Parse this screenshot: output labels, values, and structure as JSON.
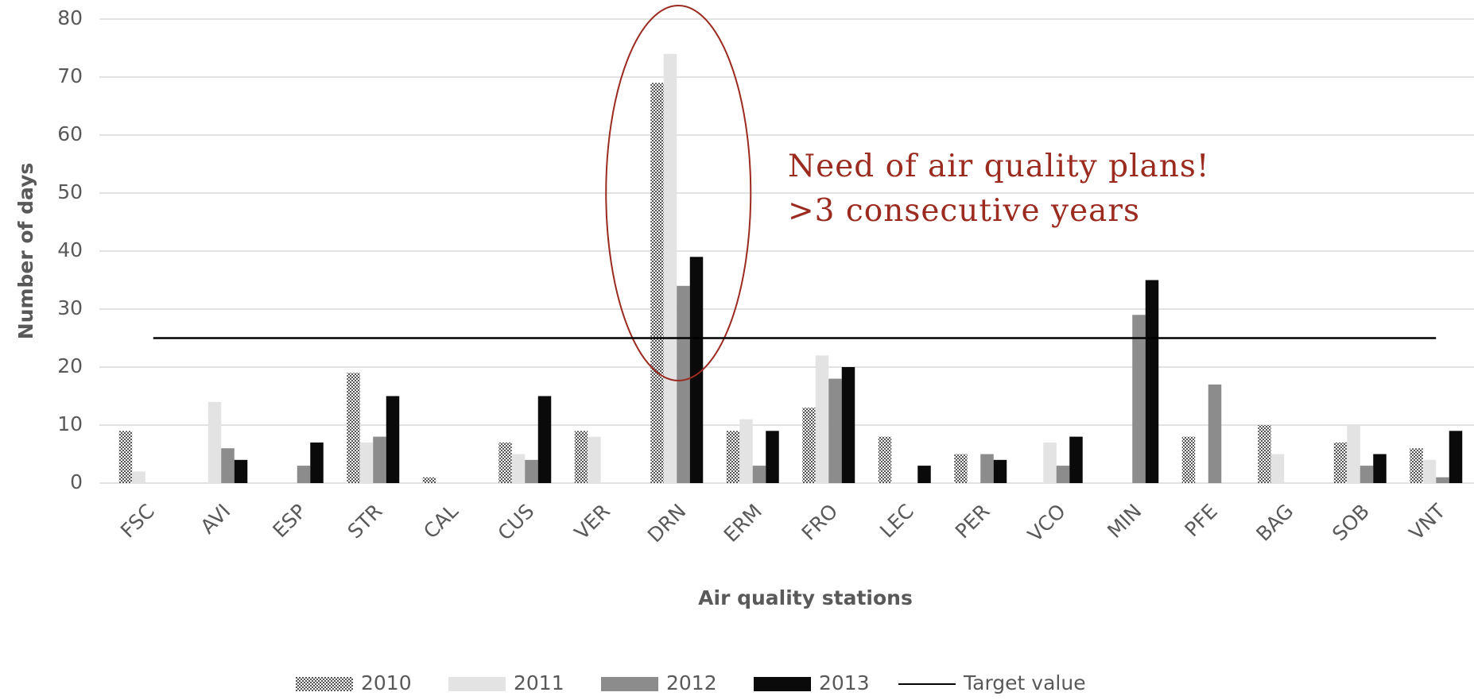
{
  "chart_data": {
    "type": "bar",
    "categories": [
      "FSC",
      "AVI",
      "ESP",
      "STR",
      "CAL",
      "CUS",
      "VER",
      "DRN",
      "ERM",
      "FRO",
      "LEC",
      "PER",
      "VCO",
      "MIN",
      "PFE",
      "BAG",
      "SOB",
      "VNT"
    ],
    "series": [
      {
        "name": "2010",
        "color": "#555555",
        "pattern": "checker",
        "values": [
          9,
          0,
          0,
          19,
          1,
          7,
          9,
          69,
          9,
          13,
          8,
          5,
          0,
          0,
          8,
          10,
          7,
          6
        ]
      },
      {
        "name": "2011",
        "color": "#e3e3e3",
        "values": [
          2,
          14,
          0,
          7,
          0,
          5,
          8,
          74,
          11,
          22,
          0,
          0,
          7,
          0,
          0,
          5,
          10,
          4
        ]
      },
      {
        "name": "2012",
        "color": "#8c8c8c",
        "values": [
          0,
          6,
          3,
          8,
          0,
          4,
          0,
          34,
          3,
          18,
          0,
          5,
          3,
          29,
          17,
          0,
          3,
          1
        ]
      },
      {
        "name": "2013",
        "color": "#0a0a0a",
        "values": [
          0,
          4,
          7,
          15,
          0,
          15,
          0,
          39,
          9,
          20,
          3,
          4,
          8,
          35,
          0,
          0,
          5,
          9
        ]
      }
    ],
    "target": {
      "name": "Target value",
      "value": 25,
      "color": "#000000"
    },
    "ylim": [
      0,
      80
    ],
    "yticks": [
      0,
      10,
      20,
      30,
      40,
      50,
      60,
      70,
      80
    ],
    "grid": true,
    "xlabel": "Air quality stations",
    "ylabel": "Number of days",
    "annotations": [
      "Need of air quality plans!",
      ">3 consecutive years"
    ],
    "highlight": {
      "category": "DRN",
      "color": "#9b2a1f"
    }
  }
}
